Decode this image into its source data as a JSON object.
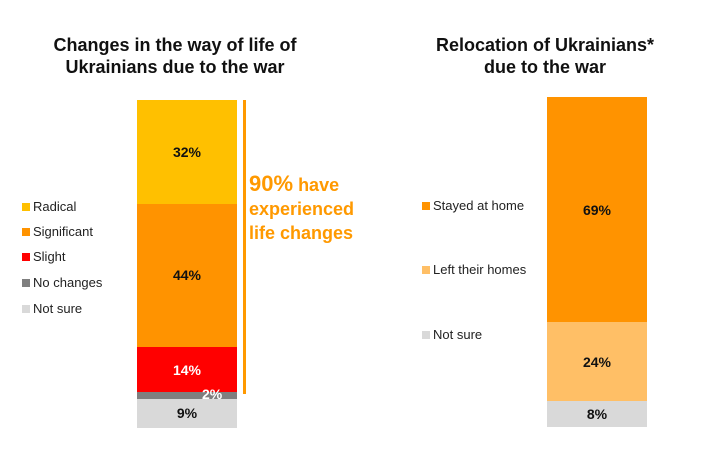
{
  "chart_data": [
    {
      "type": "bar",
      "stacked": true,
      "title": "Changes in the way of life of Ukrainians due to the war",
      "title_lines": [
        "Changes in the way of life of",
        "Ukrainians due to the war"
      ],
      "unit": "%",
      "legend_position": "left",
      "series": [
        {
          "name": "Radical",
          "value": 32,
          "label": "32%",
          "color": "#ffc000",
          "label_color": "#111111"
        },
        {
          "name": "Significant",
          "value": 44,
          "label": "44%",
          "color": "#ff9300",
          "label_color": "#111111"
        },
        {
          "name": "Slight",
          "value": 14,
          "label": "14%",
          "color": "#ff0000",
          "label_color": "#ffffff"
        },
        {
          "name": "No changes",
          "value": 2,
          "label": "2%",
          "color": "#7f7f7f",
          "label_color": "#ffffff"
        },
        {
          "name": "Not sure",
          "value": 9,
          "label": "9%",
          "color": "#d9d9d9",
          "label_color": "#111111"
        }
      ],
      "annotation": {
        "big": "90%",
        "lines": [
          "have",
          "experienced",
          "life changes"
        ],
        "color": "#ff9900"
      }
    },
    {
      "type": "bar",
      "stacked": true,
      "title": "Relocation of Ukrainians* due to the war",
      "title_lines": [
        "Relocation of Ukrainians*",
        "due to the war"
      ],
      "unit": "%",
      "legend_position": "left",
      "series": [
        {
          "name": "Stayed at home",
          "value": 69,
          "label": "69%",
          "color": "#ff9300",
          "label_color": "#111111"
        },
        {
          "name": "Left their homes",
          "value": 24,
          "label": "24%",
          "color": "#ffbf66",
          "label_color": "#111111"
        },
        {
          "name": "Not sure",
          "value": 8,
          "label": "8%",
          "color": "#d9d9d9",
          "label_color": "#111111"
        }
      ]
    }
  ]
}
